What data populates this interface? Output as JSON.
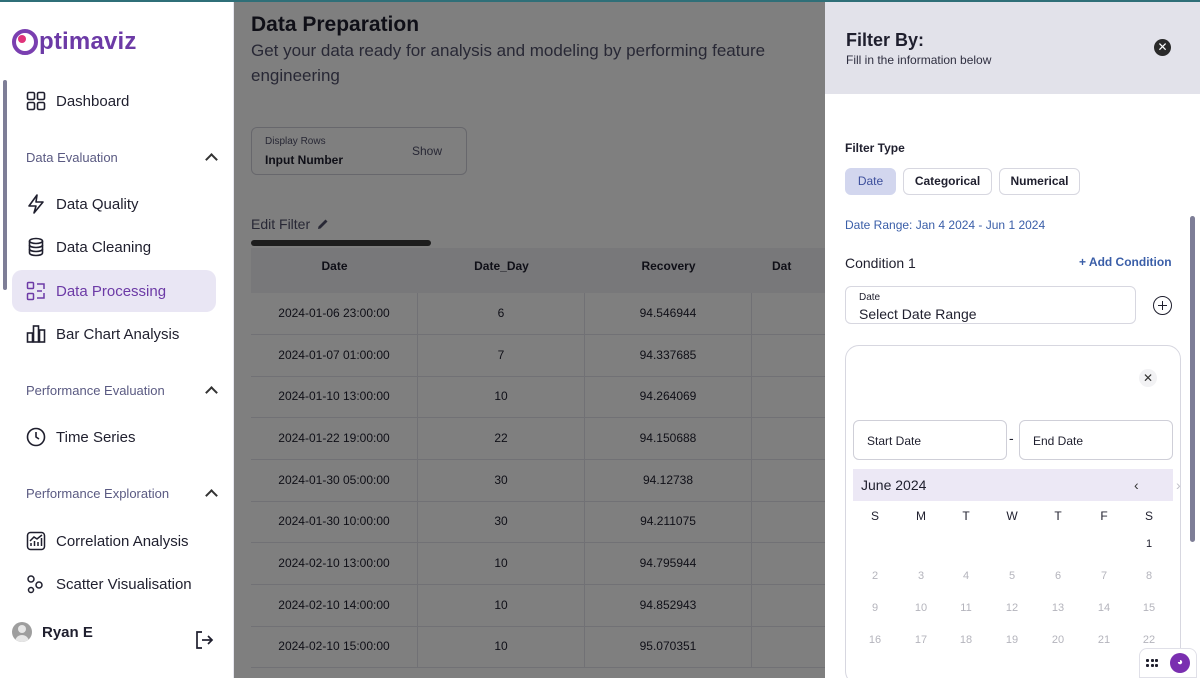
{
  "app": {
    "brand": "ptimaviz"
  },
  "sidebar": {
    "items": [
      {
        "label": "Dashboard",
        "icon": "dashboard-grid-icon"
      },
      {
        "label": "Data Quality",
        "icon": "bolt-icon"
      },
      {
        "label": "Data Cleaning",
        "icon": "database-icon"
      },
      {
        "label": "Data Processing",
        "icon": "processing-icon",
        "active": true
      },
      {
        "label": "Bar Chart Analysis",
        "icon": "bar-chart-icon"
      },
      {
        "label": "Time Series",
        "icon": "clock-icon"
      },
      {
        "label": "Correlation Analysis",
        "icon": "line-chart-icon"
      },
      {
        "label": "Scatter Visualisation",
        "icon": "scatter-icon"
      }
    ],
    "sections": [
      {
        "label": "Data Evaluation"
      },
      {
        "label": "Performance Evaluation"
      },
      {
        "label": "Performance Exploration"
      }
    ],
    "user": {
      "name": "Ryan E"
    }
  },
  "main": {
    "title": "Data Preparation",
    "subtitle": "Get your data ready for analysis and modeling by performing feature engineering",
    "display_rows": {
      "label": "Display Rows",
      "value": "Input Number",
      "button": "Show"
    },
    "edit_filter": "Edit Filter",
    "table": {
      "headers": [
        "Date",
        "Date_Day",
        "Recovery",
        "Dat"
      ],
      "rows": [
        [
          "2024-01-06 23:00:00",
          "6",
          "94.546944"
        ],
        [
          "2024-01-07 01:00:00",
          "7",
          "94.337685"
        ],
        [
          "2024-01-10 13:00:00",
          "10",
          "94.264069"
        ],
        [
          "2024-01-22 19:00:00",
          "22",
          "94.150688"
        ],
        [
          "2024-01-30 05:00:00",
          "30",
          "94.12738"
        ],
        [
          "2024-01-30 10:00:00",
          "30",
          "94.211075"
        ],
        [
          "2024-02-10 13:00:00",
          "10",
          "94.795944"
        ],
        [
          "2024-02-10 14:00:00",
          "10",
          "94.852943"
        ],
        [
          "2024-02-10 15:00:00",
          "10",
          "95.070351"
        ]
      ]
    }
  },
  "filter": {
    "title": "Filter By:",
    "subtitle": "Fill in the information below",
    "type_label": "Filter Type",
    "types": [
      "Date",
      "Categorical",
      "Numerical"
    ],
    "active_type": "Date",
    "date_range": "Date Range: Jan 4 2024 - Jun 1 2024",
    "condition_label": "Condition 1",
    "add_condition": "+ Add Condition",
    "date_field": {
      "label": "Date",
      "value": "Select Date Range"
    },
    "calendar": {
      "start_placeholder": "Start Date",
      "end_placeholder": "End Date",
      "separator": "-",
      "month": "June 2024",
      "weekdays": [
        "S",
        "M",
        "T",
        "W",
        "T",
        "F",
        "S"
      ],
      "weeks": [
        [
          "",
          "",
          "",
          "",
          "",
          "",
          "1"
        ],
        [
          "2",
          "3",
          "4",
          "5",
          "6",
          "7",
          "8"
        ],
        [
          "9",
          "10",
          "11",
          "12",
          "13",
          "14",
          "15"
        ],
        [
          "16",
          "17",
          "18",
          "19",
          "20",
          "21",
          "22"
        ]
      ],
      "enabled_days": [
        "1"
      ]
    }
  },
  "colors": {
    "brand": "#6c3aa6",
    "accent_blue": "#3a5ea8",
    "active_chip": "#d2d6ee",
    "nav_active_bg": "#e9e6f4"
  }
}
